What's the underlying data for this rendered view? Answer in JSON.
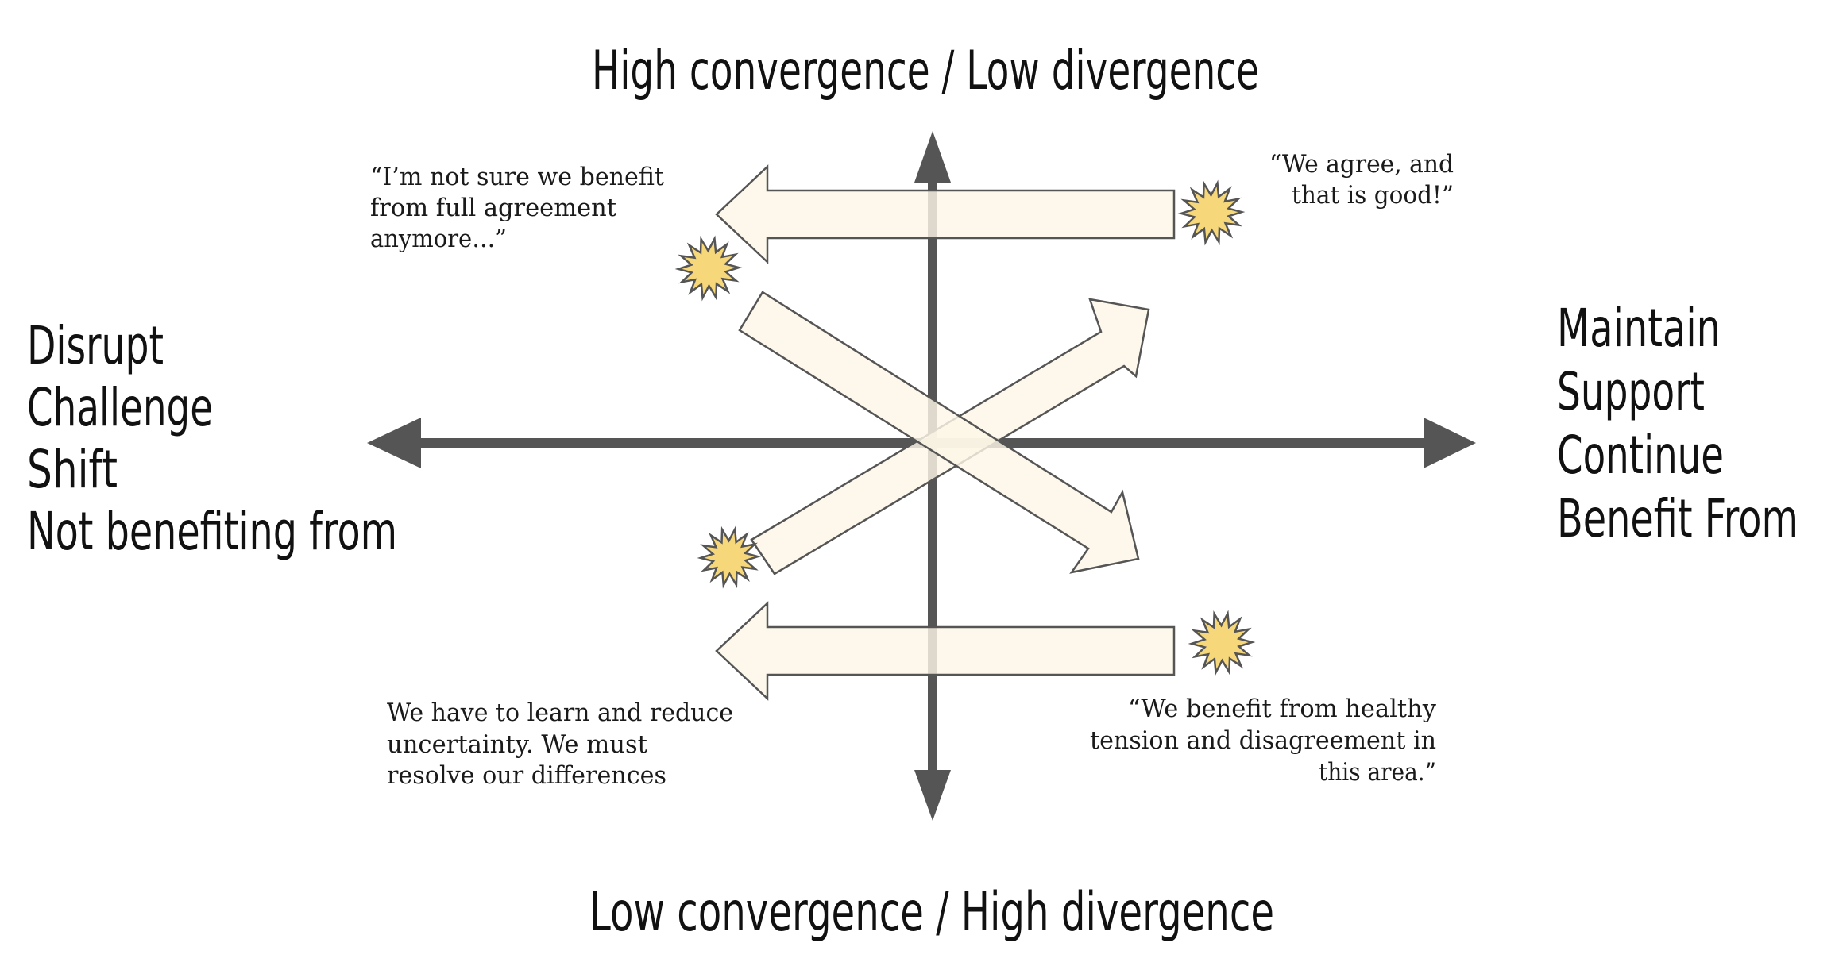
{
  "axes": {
    "top_label": "High convergence / Low divergence",
    "bottom_label": "Low convergence  / High divergence"
  },
  "left_labels": [
    "Disrupt",
    "Challenge",
    "Shift",
    "Not benefiting from"
  ],
  "right_labels": [
    "Maintain",
    "Support",
    "Continue",
    "Benefit From"
  ],
  "quotes": {
    "top_left": [
      "“I’m not sure we benefit",
      "from full agreement",
      "anymore…”"
    ],
    "top_right": [
      "“We agree, and",
      "that is good!”"
    ],
    "bottom_left": [
      "We have to learn and reduce",
      "uncertainty. We must",
      "resolve our differences"
    ],
    "bottom_right": [
      "“We benefit from healthy",
      "tension and disagreement in",
      "this area.”"
    ]
  },
  "colors": {
    "axis": "#555555",
    "arrow_fill": "#fdf7e6",
    "arrow_stroke": "#555555",
    "burst_fill": "#f6d77a",
    "burst_stroke": "#555555"
  },
  "icons": {
    "burst": "starburst-icon",
    "arrow": "block-arrow-icon"
  }
}
